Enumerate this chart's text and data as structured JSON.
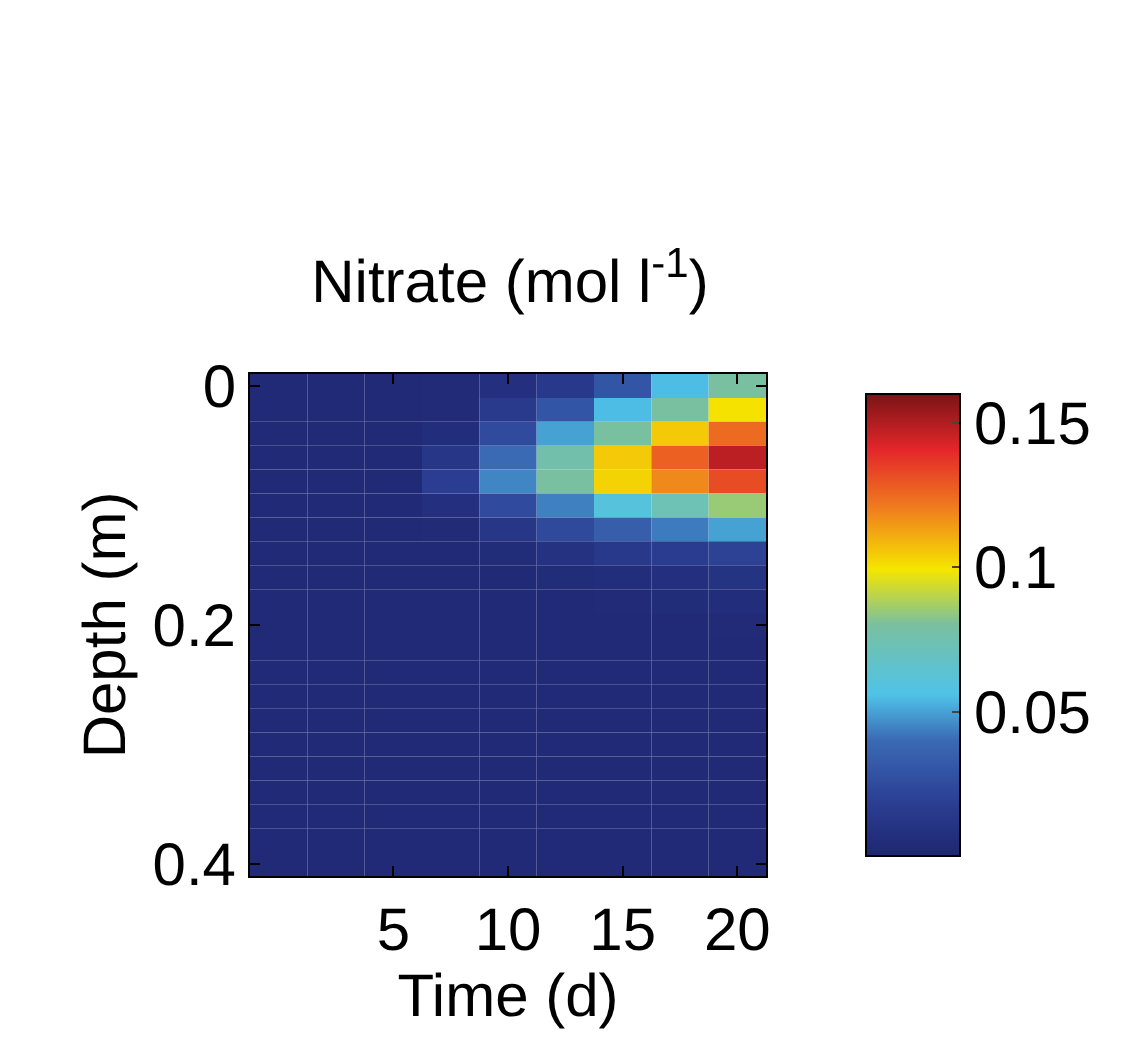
{
  "chart_data": {
    "type": "heatmap",
    "title": "Nitrate (mol l$^{-1}$)",
    "xlabel": "Time (d)",
    "ylabel": "Depth (m)",
    "categories": [
      null,
      null,
      "5",
      null,
      "10",
      null,
      "15",
      null,
      "20"
    ],
    "y_categories": [
      "0",
      null,
      null,
      null,
      null,
      null,
      null,
      null,
      null,
      null,
      "0.2",
      null,
      null,
      null,
      null,
      null,
      null,
      null,
      null,
      null,
      "0.4"
    ],
    "cells": [
      [
        0.003,
        0.003,
        0.003,
        0.004,
        0.008,
        0.014,
        0.03,
        0.055,
        0.08
      ],
      [
        0.003,
        0.003,
        0.003,
        0.004,
        0.015,
        0.03,
        0.055,
        0.08,
        0.1
      ],
      [
        0.003,
        0.003,
        0.003,
        0.006,
        0.025,
        0.05,
        0.08,
        0.105,
        0.125
      ],
      [
        0.003,
        0.003,
        0.003,
        0.012,
        0.04,
        0.076,
        0.105,
        0.127,
        0.148
      ],
      [
        0.003,
        0.003,
        0.003,
        0.018,
        0.045,
        0.08,
        0.103,
        0.118,
        0.132
      ],
      [
        0.003,
        0.003,
        0.003,
        0.008,
        0.025,
        0.044,
        0.06,
        0.073,
        0.085
      ],
      [
        0.003,
        0.003,
        0.003,
        0.004,
        0.012,
        0.024,
        0.034,
        0.043,
        0.05
      ],
      [
        0.003,
        0.003,
        0.003,
        0.003,
        0.005,
        0.009,
        0.014,
        0.017,
        0.02
      ],
      [
        0.003,
        0.003,
        0.003,
        0.003,
        0.003,
        0.005,
        0.006,
        0.008,
        0.01
      ],
      [
        0.003,
        0.003,
        0.003,
        0.003,
        0.003,
        0.003,
        0.004,
        0.005,
        0.006
      ],
      [
        0.003,
        0.003,
        0.003,
        0.003,
        0.003,
        0.003,
        0.003,
        0.003,
        0.004
      ],
      [
        0.003,
        0.003,
        0.003,
        0.003,
        0.003,
        0.003,
        0.003,
        0.003,
        0.003
      ],
      [
        0.003,
        0.003,
        0.003,
        0.003,
        0.003,
        0.003,
        0.003,
        0.003,
        0.003
      ],
      [
        0.003,
        0.003,
        0.003,
        0.003,
        0.003,
        0.003,
        0.003,
        0.003,
        0.003
      ],
      [
        0.003,
        0.003,
        0.003,
        0.003,
        0.003,
        0.003,
        0.003,
        0.003,
        0.003
      ],
      [
        0.003,
        0.003,
        0.003,
        0.003,
        0.003,
        0.003,
        0.003,
        0.003,
        0.003
      ],
      [
        0.003,
        0.003,
        0.003,
        0.003,
        0.003,
        0.003,
        0.003,
        0.003,
        0.003
      ],
      [
        0.003,
        0.003,
        0.003,
        0.003,
        0.003,
        0.003,
        0.003,
        0.003,
        0.003
      ],
      [
        0.003,
        0.003,
        0.003,
        0.003,
        0.003,
        0.003,
        0.003,
        0.003,
        0.003
      ],
      [
        0.003,
        0.003,
        0.003,
        0.003,
        0.003,
        0.003,
        0.003,
        0.003,
        0.003
      ],
      [
        0.003,
        0.003,
        0.003,
        0.003,
        0.003,
        0.003,
        0.003,
        0.003,
        0.003
      ]
    ],
    "clim": [
      0,
      0.16
    ],
    "cticks": [
      0.05,
      0.1,
      0.15
    ]
  }
}
